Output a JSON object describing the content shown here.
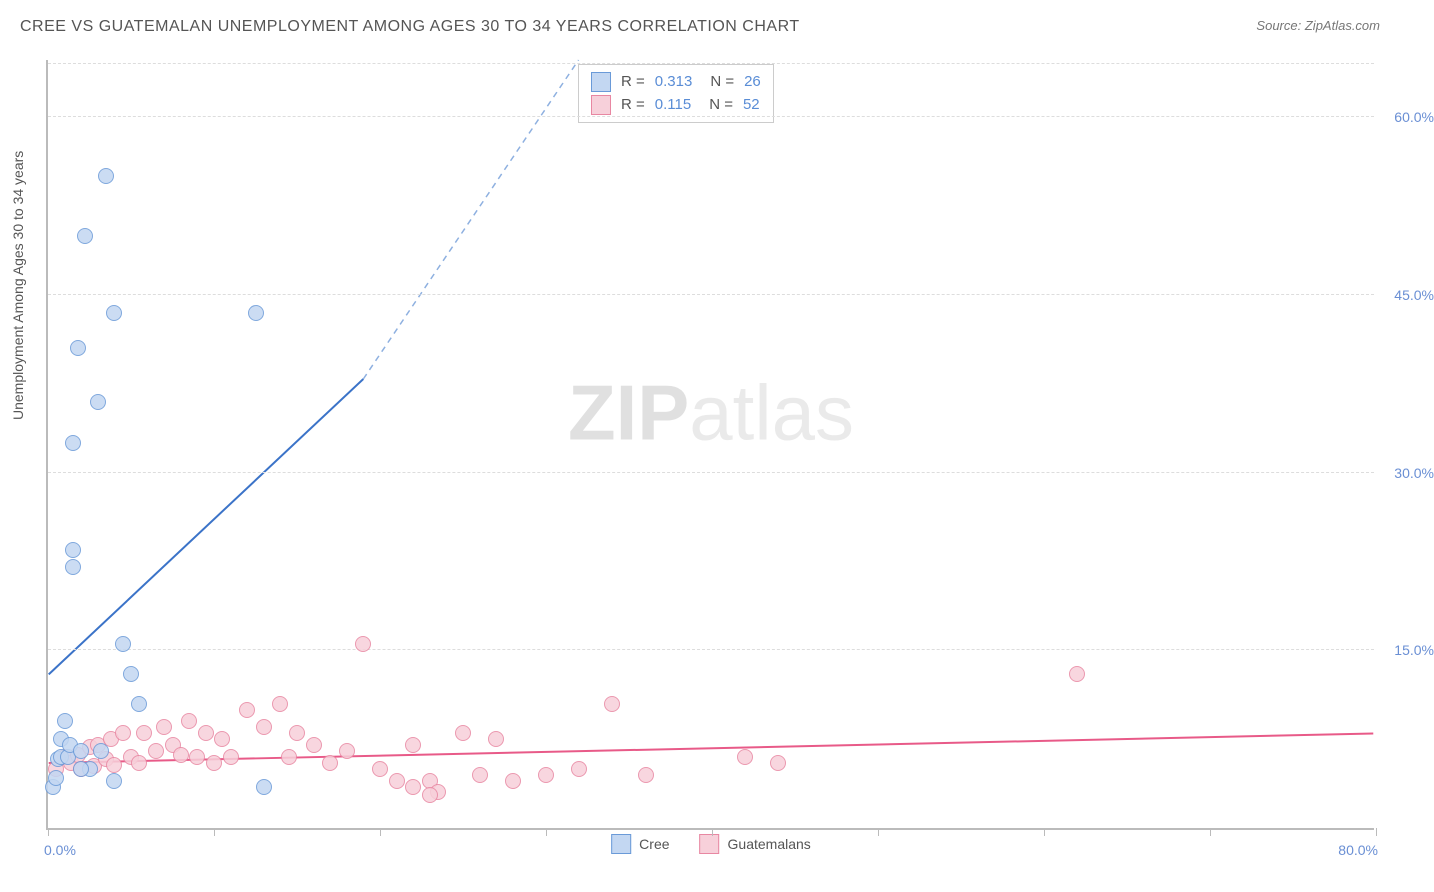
{
  "title": "CREE VS GUATEMALAN UNEMPLOYMENT AMONG AGES 30 TO 34 YEARS CORRELATION CHART",
  "source_label": "Source:",
  "source_name": "ZipAtlas.com",
  "watermark_bold": "ZIP",
  "watermark_light": "atlas",
  "ylabel": "Unemployment Among Ages 30 to 34 years",
  "chart": {
    "type": "scatter",
    "xlim": [
      0,
      80
    ],
    "ylim": [
      0,
      65
    ],
    "x_ticks": [
      0,
      10,
      20,
      30,
      40,
      50,
      60,
      70,
      80
    ],
    "x_tick_labels": {
      "0": "0.0%",
      "80": "80.0%"
    },
    "y_gridlines": [
      15,
      30,
      45,
      60
    ],
    "y_tick_labels": {
      "15": "15.0%",
      "30": "30.0%",
      "45": "45.0%",
      "60": "60.0%"
    },
    "grid_color": "#dddddd",
    "axis_color": "#bbbbbb",
    "background_color": "#ffffff",
    "point_radius": 8,
    "series": {
      "cree": {
        "label": "Cree",
        "color_fill": "#c3d7f2",
        "color_stroke": "#6a9ad8",
        "R": "0.313",
        "N": "26",
        "trend": {
          "x1": 0,
          "y1": 13,
          "x2": 19,
          "y2": 38,
          "solid": true,
          "color": "#3b73c8",
          "width": 2
        },
        "trend_dash": {
          "x1": 19,
          "y1": 38,
          "x2": 32,
          "y2": 65,
          "color": "#8eb0e0",
          "width": 1.5
        },
        "points": [
          [
            0.3,
            3.5
          ],
          [
            0.5,
            4.2
          ],
          [
            0.6,
            5.8
          ],
          [
            0.8,
            6.0
          ],
          [
            0.8,
            7.5
          ],
          [
            1.0,
            9.0
          ],
          [
            1.2,
            6.0
          ],
          [
            1.3,
            7.0
          ],
          [
            1.5,
            22.0
          ],
          [
            1.5,
            23.5
          ],
          [
            1.5,
            32.5
          ],
          [
            1.8,
            40.5
          ],
          [
            2.0,
            6.5
          ],
          [
            2.2,
            50.0
          ],
          [
            2.5,
            5.0
          ],
          [
            3.0,
            36.0
          ],
          [
            3.2,
            6.5
          ],
          [
            3.5,
            55.0
          ],
          [
            4.0,
            43.5
          ],
          [
            4.0,
            4.0
          ],
          [
            4.5,
            15.5
          ],
          [
            5.0,
            13.0
          ],
          [
            5.5,
            10.5
          ],
          [
            12.5,
            43.5
          ],
          [
            13.0,
            3.5
          ],
          [
            2.0,
            5.0
          ]
        ]
      },
      "guatemalans": {
        "label": "Guatemalans",
        "color_fill": "#f7d0da",
        "color_stroke": "#e887a2",
        "R": "0.115",
        "N": "52",
        "trend": {
          "x1": 0,
          "y1": 5.5,
          "x2": 80,
          "y2": 8.0,
          "solid": true,
          "color": "#e85a88",
          "width": 2
        },
        "points": [
          [
            0.5,
            5.0
          ],
          [
            1.0,
            6.0
          ],
          [
            1.4,
            5.5
          ],
          [
            1.8,
            6.2
          ],
          [
            2.0,
            5.0
          ],
          [
            2.5,
            6.8
          ],
          [
            2.8,
            5.2
          ],
          [
            3.0,
            7.0
          ],
          [
            3.5,
            5.8
          ],
          [
            3.8,
            7.5
          ],
          [
            4.0,
            5.3
          ],
          [
            4.5,
            8.0
          ],
          [
            5.0,
            6.0
          ],
          [
            5.5,
            5.5
          ],
          [
            5.8,
            8.0
          ],
          [
            6.5,
            6.5
          ],
          [
            7.0,
            8.5
          ],
          [
            7.5,
            7.0
          ],
          [
            8.0,
            6.2
          ],
          [
            8.5,
            9.0
          ],
          [
            9.0,
            6.0
          ],
          [
            9.5,
            8.0
          ],
          [
            10.0,
            5.5
          ],
          [
            10.5,
            7.5
          ],
          [
            11.0,
            6.0
          ],
          [
            12.0,
            10.0
          ],
          [
            13.0,
            8.5
          ],
          [
            14.0,
            10.5
          ],
          [
            14.5,
            6.0
          ],
          [
            15.0,
            8.0
          ],
          [
            16.0,
            7.0
          ],
          [
            17.0,
            5.5
          ],
          [
            18.0,
            6.5
          ],
          [
            19.0,
            15.5
          ],
          [
            20.0,
            5.0
          ],
          [
            21.0,
            4.0
          ],
          [
            22.0,
            3.5
          ],
          [
            22.0,
            7.0
          ],
          [
            23.0,
            4.0
          ],
          [
            23.5,
            3.0
          ],
          [
            25.0,
            8.0
          ],
          [
            26.0,
            4.5
          ],
          [
            27.0,
            7.5
          ],
          [
            28.0,
            4.0
          ],
          [
            30.0,
            4.5
          ],
          [
            32.0,
            5.0
          ],
          [
            34.0,
            10.5
          ],
          [
            36.0,
            4.5
          ],
          [
            42.0,
            6.0
          ],
          [
            44.0,
            5.5
          ],
          [
            62.0,
            13.0
          ],
          [
            23.0,
            2.8
          ]
        ]
      }
    }
  }
}
